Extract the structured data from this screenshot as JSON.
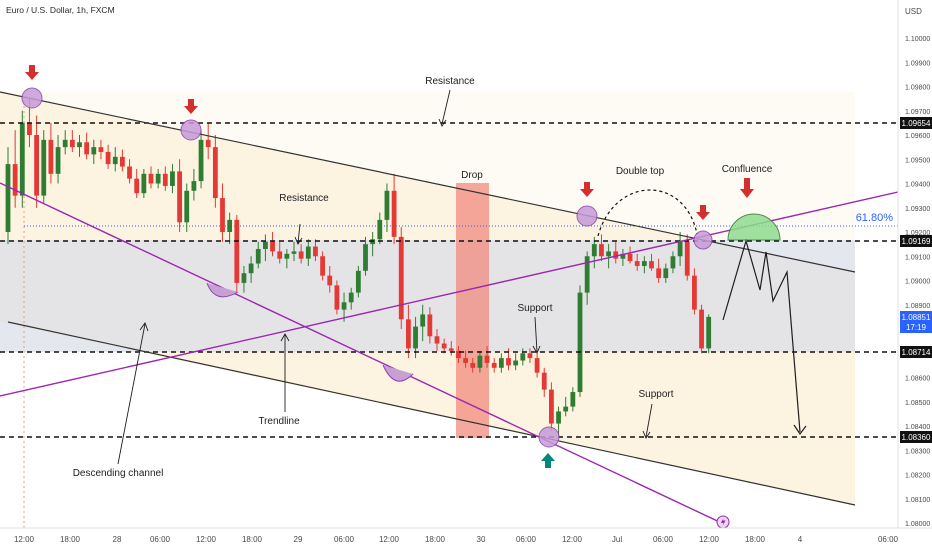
{
  "header": {
    "title": "Euro / U.S. Dollar, 1h, FXCM"
  },
  "price_axis": {
    "currency": "USD",
    "ticks": [
      "1.10000",
      "1.09900",
      "1.09800",
      "1.09700",
      "1.09600",
      "1.09500",
      "1.09400",
      "1.09300",
      "1.09200",
      "1.09100",
      "1.09000",
      "1.08900",
      "1.08800",
      "1.08700",
      "1.08600",
      "1.08500",
      "1.08400",
      "1.08300",
      "1.08200",
      "1.08100",
      "1.08000"
    ],
    "tags": {
      "r1": "1.09654",
      "r2": "1.09169",
      "current_price": "1.08851",
      "countdown": "17:19",
      "s1": "1.08714",
      "s2": "1.08360"
    }
  },
  "time_axis": {
    "labels": [
      "12:00",
      "18:00",
      "28",
      "06:00",
      "12:00",
      "18:00",
      "29",
      "06:00",
      "12:00",
      "18:00",
      "30",
      "06:00",
      "12:00",
      "Jul",
      "06:00",
      "12:00",
      "18:00",
      "4",
      "06:00"
    ]
  },
  "annotations": {
    "resistance_top": "Resistance",
    "resistance_mid": "Resistance",
    "drop": "Drop",
    "double_top": "Double top",
    "confluence": "Confluence",
    "fib": "61.80%",
    "support_mid": "Support",
    "support_low": "Support",
    "trendline": "Trendline",
    "channel": "Descending channel"
  },
  "colors": {
    "bull": "#2e7d32",
    "bear": "#e53935",
    "arrow_down": "#d32f2f",
    "arrow_up": "#00897b",
    "trendline": "#9c27b0",
    "channel_line": "#333333",
    "fib": "#2962ff",
    "tag_current": "#2962ff"
  },
  "chart_data": {
    "type": "candlestick",
    "symbol": "EURUSD",
    "timeframe": "1h",
    "ylim": [
      1.08,
      1.1008
    ],
    "horizontal_levels": [
      1.09654,
      1.09169,
      1.08714,
      1.0836
    ],
    "fib_level": {
      "label": "61.80%",
      "price": 1.0923
    },
    "candles": [
      [
        1.092,
        1.0955,
        1.0915,
        1.0948
      ],
      [
        1.0948,
        1.0962,
        1.093,
        1.0935
      ],
      [
        1.0935,
        1.097,
        1.093,
        1.0965
      ],
      [
        1.0965,
        1.0975,
        1.0955,
        1.096
      ],
      [
        1.096,
        1.0968,
        1.093,
        1.0935
      ],
      [
        1.0935,
        1.0962,
        1.0932,
        1.0958
      ],
      [
        1.0958,
        1.0965,
        1.094,
        1.0944
      ],
      [
        1.0944,
        1.096,
        1.094,
        1.0955
      ],
      [
        1.0955,
        1.0962,
        1.0952,
        1.0958
      ],
      [
        1.0958,
        1.0962,
        1.0953,
        1.0955
      ],
      [
        1.0955,
        1.096,
        1.0951,
        1.0957
      ],
      [
        1.0957,
        1.0961,
        1.095,
        1.0952
      ],
      [
        1.0952,
        1.0958,
        1.0948,
        1.0955
      ],
      [
        1.0955,
        1.0958,
        1.095,
        1.0953
      ],
      [
        1.0953,
        1.0956,
        1.0946,
        1.0948
      ],
      [
        1.0948,
        1.0955,
        1.0945,
        1.0951
      ],
      [
        1.0951,
        1.0954,
        1.0945,
        1.0947
      ],
      [
        1.0947,
        1.095,
        1.094,
        1.0942
      ],
      [
        1.0942,
        1.0946,
        1.0934,
        1.0936
      ],
      [
        1.0936,
        1.0946,
        1.0934,
        1.0944
      ],
      [
        1.0944,
        1.0947,
        1.0938,
        1.094
      ],
      [
        1.094,
        1.0946,
        1.0938,
        1.0944
      ],
      [
        1.0944,
        1.0947,
        1.0937,
        1.0939
      ],
      [
        1.0939,
        1.0948,
        1.0936,
        1.0945
      ],
      [
        1.0945,
        1.095,
        1.092,
        1.0924
      ],
      [
        1.0924,
        1.094,
        1.092,
        1.0937
      ],
      [
        1.0937,
        1.0946,
        1.0933,
        1.0941
      ],
      [
        1.0941,
        1.0962,
        1.0938,
        1.0958
      ],
      [
        1.0958,
        1.0965,
        1.095,
        1.0955
      ],
      [
        1.0955,
        1.096,
        1.093,
        1.0934
      ],
      [
        1.0934,
        1.094,
        1.0916,
        1.092
      ],
      [
        1.092,
        1.0928,
        1.0915,
        1.0925
      ],
      [
        1.0925,
        1.0927,
        1.0895,
        1.0899
      ],
      [
        1.0899,
        1.0906,
        1.0895,
        1.0903
      ],
      [
        1.0903,
        1.091,
        1.0899,
        1.0907
      ],
      [
        1.0907,
        1.0916,
        1.0905,
        1.0913
      ],
      [
        1.0913,
        1.0919,
        1.0908,
        1.0916
      ],
      [
        1.0916,
        1.092,
        1.091,
        1.0912
      ],
      [
        1.0912,
        1.0916,
        1.0907,
        1.0909
      ],
      [
        1.0909,
        1.0913,
        1.0905,
        1.0911
      ],
      [
        1.0911,
        1.0916,
        1.0908,
        1.0912
      ],
      [
        1.0912,
        1.0915,
        1.0907,
        1.0909
      ],
      [
        1.0909,
        1.0917,
        1.0906,
        1.0914
      ],
      [
        1.0914,
        1.0917,
        1.0908,
        1.091
      ],
      [
        1.091,
        1.0912,
        1.09,
        1.0902
      ],
      [
        1.0902,
        1.0906,
        1.0895,
        1.0898
      ],
      [
        1.0898,
        1.09,
        1.0886,
        1.0888
      ],
      [
        1.0888,
        1.0895,
        1.0883,
        1.0891
      ],
      [
        1.0891,
        1.0897,
        1.0888,
        1.0895
      ],
      [
        1.0895,
        1.0906,
        1.0893,
        1.0904
      ],
      [
        1.0904,
        1.0918,
        1.0902,
        1.0915
      ],
      [
        1.0915,
        1.092,
        1.091,
        1.0917
      ],
      [
        1.0917,
        1.0928,
        1.0915,
        1.0925
      ],
      [
        1.0925,
        1.094,
        1.092,
        1.0937
      ],
      [
        1.0937,
        1.0944,
        1.0915,
        1.0918
      ],
      [
        1.0918,
        1.0922,
        1.088,
        1.0884
      ],
      [
        1.0884,
        1.089,
        1.0868,
        1.0872
      ],
      [
        1.0872,
        1.0885,
        1.0868,
        1.0881
      ],
      [
        1.0881,
        1.089,
        1.0875,
        1.0886
      ],
      [
        1.0886,
        1.0889,
        1.0874,
        1.0877
      ],
      [
        1.0877,
        1.088,
        1.0871,
        1.0874
      ],
      [
        1.0874,
        1.0876,
        1.087,
        1.0872
      ],
      [
        1.0872,
        1.0875,
        1.0869,
        1.0871
      ],
      [
        1.0871,
        1.0873,
        1.0866,
        1.0868
      ],
      [
        1.0868,
        1.0871,
        1.0864,
        1.0866
      ],
      [
        1.0866,
        1.0868,
        1.0862,
        1.0864
      ],
      [
        1.0864,
        1.0871,
        1.0862,
        1.0869
      ],
      [
        1.0869,
        1.0873,
        1.0864,
        1.0866
      ],
      [
        1.0866,
        1.0868,
        1.0862,
        1.0864
      ],
      [
        1.0864,
        1.087,
        1.0862,
        1.0868
      ],
      [
        1.0868,
        1.0872,
        1.0863,
        1.0865
      ],
      [
        1.0865,
        1.087,
        1.0863,
        1.0867
      ],
      [
        1.0867,
        1.0872,
        1.0865,
        1.087
      ],
      [
        1.087,
        1.0872,
        1.0866,
        1.0868
      ],
      [
        1.0868,
        1.087,
        1.086,
        1.0862
      ],
      [
        1.0862,
        1.0864,
        1.0852,
        1.0855
      ],
      [
        1.0855,
        1.0858,
        1.0838,
        1.0841
      ],
      [
        1.0841,
        1.0848,
        1.0836,
        1.0846
      ],
      [
        1.0846,
        1.0852,
        1.0844,
        1.0848
      ],
      [
        1.0848,
        1.0856,
        1.0846,
        1.0854
      ],
      [
        1.0854,
        1.0898,
        1.0852,
        1.0895
      ],
      [
        1.0895,
        1.0912,
        1.089,
        1.091
      ],
      [
        1.091,
        1.0918,
        1.0905,
        1.0915
      ],
      [
        1.0915,
        1.0919,
        1.0908,
        1.091
      ],
      [
        1.091,
        1.0915,
        1.0905,
        1.0912
      ],
      [
        1.0912,
        1.0916,
        1.0907,
        1.0909
      ],
      [
        1.0909,
        1.0913,
        1.0906,
        1.0911
      ],
      [
        1.0911,
        1.0914,
        1.0907,
        1.0908
      ],
      [
        1.0908,
        1.0911,
        1.0904,
        1.0906
      ],
      [
        1.0906,
        1.091,
        1.0903,
        1.0908
      ],
      [
        1.0908,
        1.0911,
        1.0904,
        1.0905
      ],
      [
        1.0905,
        1.0909,
        1.0899,
        1.0901
      ],
      [
        1.0901,
        1.0907,
        1.0899,
        1.0905
      ],
      [
        1.0905,
        1.0912,
        1.0903,
        1.091
      ],
      [
        1.091,
        1.092,
        1.0906,
        1.0916
      ],
      [
        1.0916,
        1.0919,
        1.09,
        1.0902
      ],
      [
        1.0902,
        1.0905,
        1.0886,
        1.0888
      ],
      [
        1.0888,
        1.089,
        1.087,
        1.0872
      ],
      [
        1.0872,
        1.0886,
        1.087,
        1.0885
      ]
    ]
  }
}
